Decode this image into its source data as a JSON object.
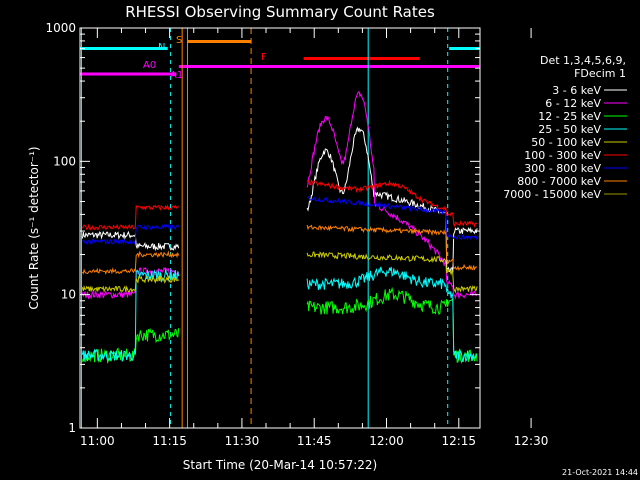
{
  "chart_data": {
    "type": "line",
    "title": "RHESSI Observing Summary Count Rates",
    "xlabel": "Start Time (20-Mar-14 10:57:22)",
    "ylabel": "Count Rate (s⁻¹ detector⁻¹)",
    "y_scale": "log",
    "x_range_minutes": [
      -1,
      82
    ],
    "y_range": [
      1,
      1000
    ],
    "x_ticks": [
      {
        "label": "11:00",
        "t": 2.6
      },
      {
        "label": "11:15",
        "t": 17.6
      },
      {
        "label": "11:30",
        "t": 32.6
      },
      {
        "label": "11:45",
        "t": 47.6
      },
      {
        "label": "12:00",
        "t": 62.6
      },
      {
        "label": "12:15",
        "t": 77.6
      },
      {
        "label": "12:30",
        "t": 92.6
      }
    ],
    "y_ticks": [
      {
        "label": "1",
        "v": 1
      },
      {
        "label": "10",
        "v": 10
      },
      {
        "label": "100",
        "v": 100
      },
      {
        "label": "1000",
        "v": 1000
      }
    ],
    "legend_header": [
      "Det 1,3,4,5,6,9,",
      "FDecim 1"
    ],
    "series": [
      {
        "name": "3 - 6 keV",
        "color": "#ffffff"
      },
      {
        "name": "6 - 12 keV",
        "color": "#ff00ff"
      },
      {
        "name": "12 - 25 keV",
        "color": "#00ff00"
      },
      {
        "name": "25 - 50 keV",
        "color": "#00ffff"
      },
      {
        "name": "50 - 100 keV",
        "color": "#cccc00"
      },
      {
        "name": "100 - 300 keV",
        "color": "#ff0000"
      },
      {
        "name": "300 - 800 keV",
        "color": "#0000ff"
      },
      {
        "name": "800 - 7000 keV",
        "color": "#ff8000"
      },
      {
        "name": "7000 - 15000 keV",
        "color": "#999900"
      }
    ],
    "flags": [
      {
        "label": "S",
        "color": "#ff8000"
      },
      {
        "label": "N",
        "color": "#00ffff"
      },
      {
        "label": "F",
        "color": "#ff0000"
      },
      {
        "label": "A0",
        "color": "#ff00ff"
      },
      {
        "label": "A1",
        "color": "#ff00ff"
      }
    ]
  },
  "footer": {
    "timestamp": "21-Oct-2021 14:44"
  }
}
